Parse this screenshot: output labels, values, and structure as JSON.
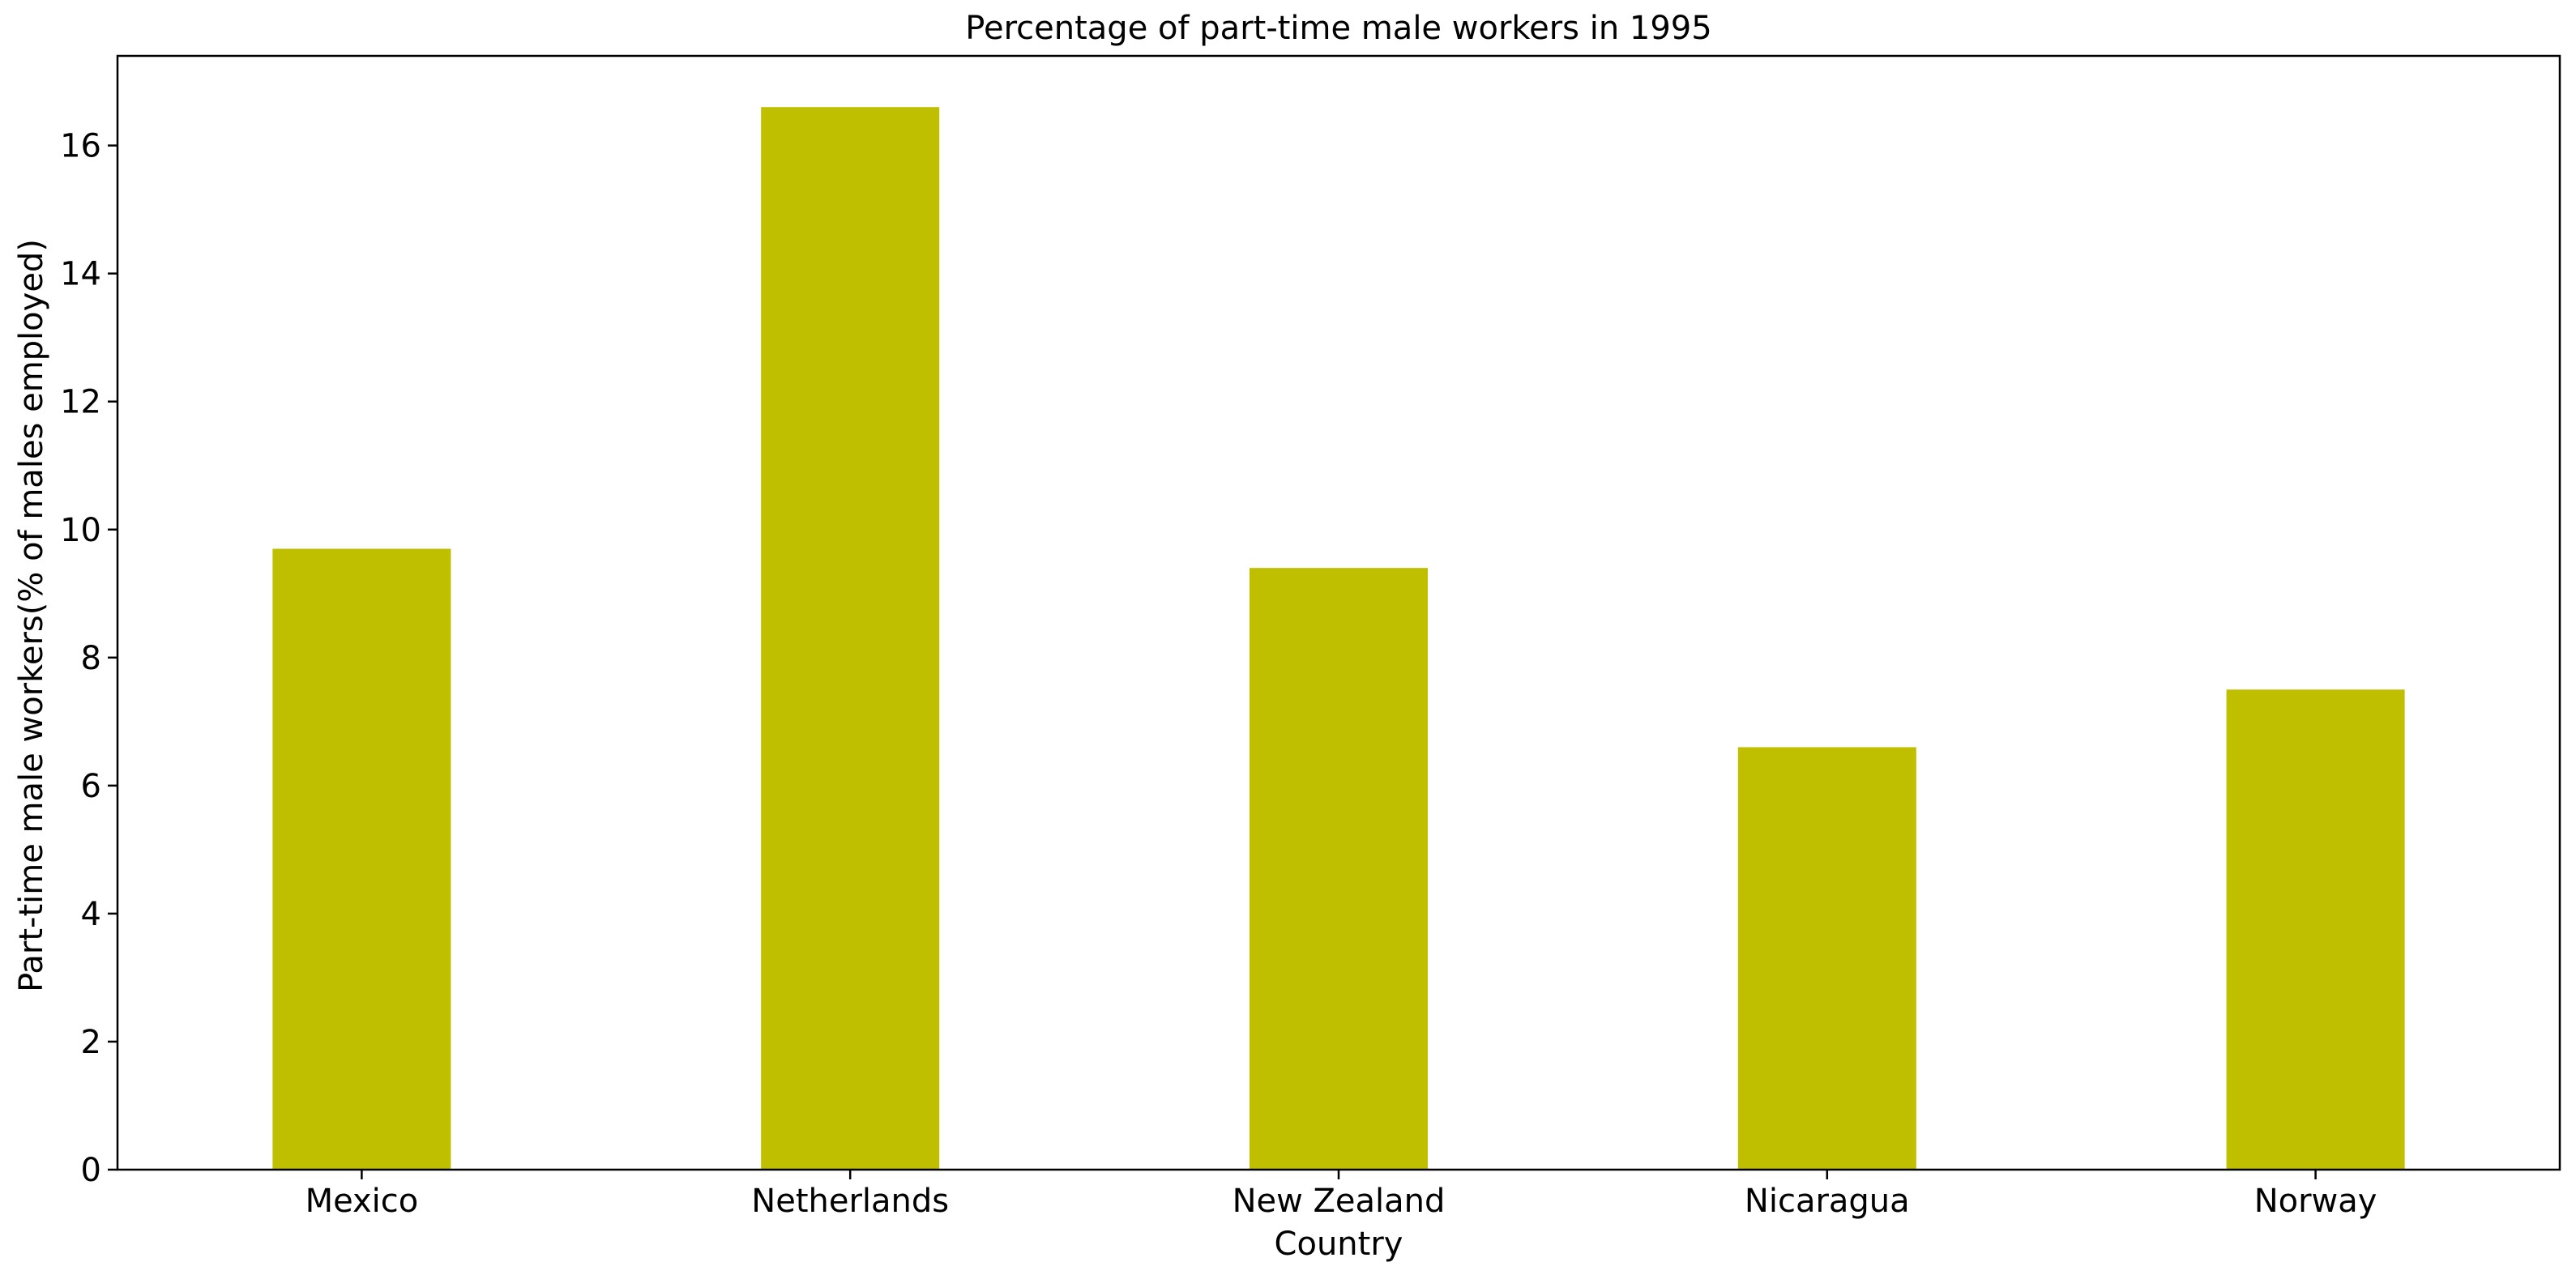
{
  "chart_data": {
    "type": "bar",
    "title": "Percentage of part-time male workers in 1995",
    "xlabel": "Country",
    "ylabel": "Part-time male workers(% of males employed)",
    "categories": [
      "Mexico",
      "Netherlands",
      "New Zealand",
      "Nicaragua",
      "Norway"
    ],
    "values": [
      9.7,
      16.6,
      9.4,
      6.6,
      7.5
    ],
    "ylim": [
      0,
      17.4
    ],
    "yticks": [
      0,
      2,
      4,
      6,
      8,
      10,
      12,
      14,
      16
    ],
    "grid": false,
    "legend": "none",
    "bar_color": "#bfbf00"
  }
}
